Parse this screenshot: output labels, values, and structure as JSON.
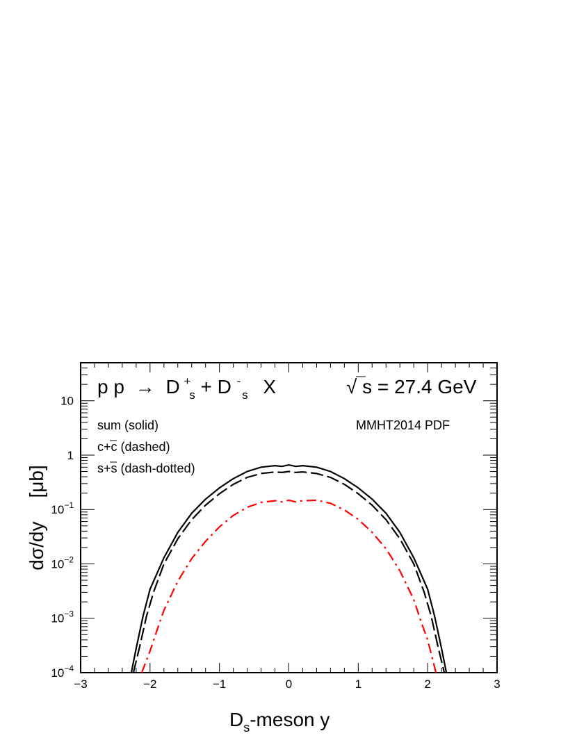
{
  "chart_data": {
    "type": "line",
    "title": "p p → D_s^+ + D_s^- X",
    "title_parts": {
      "pp": "p p",
      "arrow": "→",
      "d1": "D",
      "s1": "s",
      "plus1": "+",
      "plus_mid": "+",
      "d2": "D",
      "s2": "s",
      "minus2": "-",
      "x": "X"
    },
    "energy_label": {
      "sqrt": "√",
      "text": "s = 27.4 GeV"
    },
    "pdf_label": "MMHT2014 PDF",
    "legend": [
      {
        "text": "sum (solid)"
      },
      {
        "text_before": "c+",
        "overbar": "c",
        "text_after": " (dashed)"
      },
      {
        "text_before": "s+",
        "overbar": "s",
        "text_after": " (dash-dotted)"
      }
    ],
    "xlabel": {
      "main": "D",
      "sub": "s",
      "rest": "-meson y"
    },
    "ylabel": {
      "main": "dσ/dy",
      "unit": "[μb]"
    },
    "xlim": [
      -3,
      3
    ],
    "ylim": [
      0.0001,
      50
    ],
    "yscale": "log",
    "x_ticks": [
      "−3",
      "−2",
      "−1",
      "0",
      "1",
      "2",
      "3"
    ],
    "y_ticks": [
      {
        "base": "10",
        "exp": "−4",
        "v": 0.0001
      },
      {
        "base": "10",
        "exp": "−3",
        "v": 0.001
      },
      {
        "base": "10",
        "exp": "−2",
        "v": 0.01
      },
      {
        "base": "10",
        "exp": "−1",
        "v": 0.1
      },
      {
        "base": "1",
        "exp": "",
        "v": 1
      },
      {
        "base": "10",
        "exp": "",
        "v": 10
      }
    ],
    "series": [
      {
        "key": "sum",
        "color": "#000000",
        "dash": "solid",
        "points": [
          [
            -2.27,
            0.0001
          ],
          [
            -2.2,
            0.00028
          ],
          [
            -2.1,
            0.0011
          ],
          [
            -2.0,
            0.0034
          ],
          [
            -1.8,
            0.013
          ],
          [
            -1.6,
            0.038
          ],
          [
            -1.4,
            0.085
          ],
          [
            -1.2,
            0.155
          ],
          [
            -1.0,
            0.25
          ],
          [
            -0.8,
            0.37
          ],
          [
            -0.6,
            0.5
          ],
          [
            -0.4,
            0.6
          ],
          [
            -0.2,
            0.64
          ],
          [
            -0.1,
            0.62
          ],
          [
            0.0,
            0.66
          ],
          [
            0.1,
            0.62
          ],
          [
            0.2,
            0.64
          ],
          [
            0.4,
            0.6
          ],
          [
            0.6,
            0.5
          ],
          [
            0.8,
            0.37
          ],
          [
            1.0,
            0.25
          ],
          [
            1.2,
            0.155
          ],
          [
            1.4,
            0.085
          ],
          [
            1.6,
            0.038
          ],
          [
            1.8,
            0.013
          ],
          [
            2.0,
            0.0034
          ],
          [
            2.1,
            0.0011
          ],
          [
            2.2,
            0.00028
          ],
          [
            2.27,
            0.0001
          ]
        ]
      },
      {
        "key": "ccbar",
        "color": "#000000",
        "dash": "dashed",
        "points": [
          [
            -2.24,
            0.0001
          ],
          [
            -2.15,
            0.0003
          ],
          [
            -2.05,
            0.0011
          ],
          [
            -1.95,
            0.003
          ],
          [
            -1.8,
            0.01
          ],
          [
            -1.6,
            0.029
          ],
          [
            -1.4,
            0.065
          ],
          [
            -1.2,
            0.12
          ],
          [
            -1.0,
            0.195
          ],
          [
            -0.8,
            0.29
          ],
          [
            -0.6,
            0.39
          ],
          [
            -0.4,
            0.46
          ],
          [
            -0.2,
            0.49
          ],
          [
            -0.1,
            0.48
          ],
          [
            0.0,
            0.5
          ],
          [
            0.1,
            0.48
          ],
          [
            0.2,
            0.49
          ],
          [
            0.4,
            0.46
          ],
          [
            0.6,
            0.39
          ],
          [
            0.8,
            0.29
          ],
          [
            1.0,
            0.195
          ],
          [
            1.2,
            0.12
          ],
          [
            1.4,
            0.065
          ],
          [
            1.6,
            0.029
          ],
          [
            1.8,
            0.01
          ],
          [
            1.95,
            0.003
          ],
          [
            2.05,
            0.0011
          ],
          [
            2.15,
            0.0003
          ],
          [
            2.24,
            0.0001
          ]
        ]
      },
      {
        "key": "ssbar",
        "color": "#ff0000",
        "dash": "dashdot",
        "points": [
          [
            -2.12,
            0.0001
          ],
          [
            -2.0,
            0.00025
          ],
          [
            -1.9,
            0.0006
          ],
          [
            -1.8,
            0.0014
          ],
          [
            -1.6,
            0.0048
          ],
          [
            -1.4,
            0.0125
          ],
          [
            -1.2,
            0.026
          ],
          [
            -1.0,
            0.048
          ],
          [
            -0.8,
            0.078
          ],
          [
            -0.6,
            0.11
          ],
          [
            -0.4,
            0.135
          ],
          [
            -0.2,
            0.145
          ],
          [
            -0.1,
            0.138
          ],
          [
            0.0,
            0.148
          ],
          [
            0.1,
            0.138
          ],
          [
            0.2,
            0.145
          ],
          [
            0.4,
            0.148
          ],
          [
            0.6,
            0.13
          ],
          [
            0.8,
            0.098
          ],
          [
            1.0,
            0.066
          ],
          [
            1.2,
            0.038
          ],
          [
            1.4,
            0.019
          ],
          [
            1.6,
            0.0075
          ],
          [
            1.8,
            0.0022
          ],
          [
            1.9,
            0.0009
          ],
          [
            2.0,
            0.0004
          ],
          [
            2.12,
            0.0001
          ]
        ]
      }
    ]
  }
}
